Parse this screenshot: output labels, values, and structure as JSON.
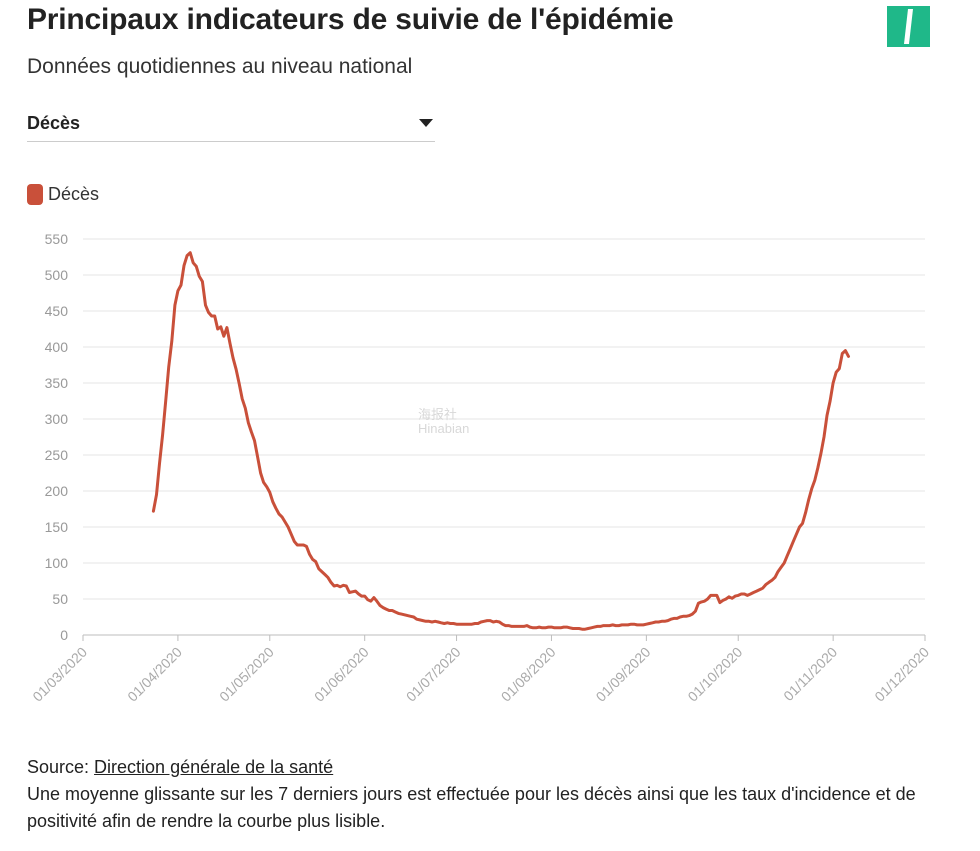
{
  "header": {
    "title": "Principaux indicateurs de suivie de l'épidémie",
    "subtitle": "Données quotidiennes au niveau national"
  },
  "logo": {
    "icon": "slash-logo-icon",
    "color": "#1fb889"
  },
  "selector": {
    "value": "Décès"
  },
  "legend": {
    "label": "Décès",
    "color": "#c9503a"
  },
  "watermark": {
    "line1": "海报社",
    "line2": "Hinabian"
  },
  "footer": {
    "source_prefix": "Source: ",
    "source_link": "Direction générale de la santé",
    "note": "Une moyenne glissante sur les 7 derniers jours est effectuée pour les décès ainsi que les taux d'incidence et de positivité afin de rendre la courbe plus lisible."
  },
  "chart_data": {
    "type": "line",
    "ylim": [
      0,
      550
    ],
    "yticks": [
      0,
      50,
      100,
      150,
      200,
      250,
      300,
      350,
      400,
      450,
      500,
      550
    ],
    "grid": true,
    "legend_position": "top-left",
    "xticks": [
      "01/03/2020",
      "01/04/2020",
      "01/05/2020",
      "01/06/2020",
      "01/07/2020",
      "01/08/2020",
      "01/09/2020",
      "01/10/2020",
      "01/11/2020",
      "01/12/2020"
    ],
    "series": [
      {
        "name": "Décès",
        "color": "#c9503a",
        "points": [
          [
            "2020-03-24",
            172
          ],
          [
            "2020-03-25",
            195
          ],
          [
            "2020-03-26",
            238
          ],
          [
            "2020-03-27",
            278
          ],
          [
            "2020-03-28",
            325
          ],
          [
            "2020-03-29",
            372
          ],
          [
            "2020-03-30",
            408
          ],
          [
            "2020-03-31",
            458
          ],
          [
            "2020-04-01",
            478
          ],
          [
            "2020-04-02",
            486
          ],
          [
            "2020-04-03",
            513
          ],
          [
            "2020-04-04",
            527
          ],
          [
            "2020-04-05",
            531
          ],
          [
            "2020-04-06",
            517
          ],
          [
            "2020-04-07",
            512
          ],
          [
            "2020-04-08",
            498
          ],
          [
            "2020-04-09",
            491
          ],
          [
            "2020-04-10",
            458
          ],
          [
            "2020-04-11",
            448
          ],
          [
            "2020-04-12",
            443
          ],
          [
            "2020-04-13",
            443
          ],
          [
            "2020-04-14",
            425
          ],
          [
            "2020-04-15",
            428
          ],
          [
            "2020-04-16",
            415
          ],
          [
            "2020-04-17",
            427
          ],
          [
            "2020-04-18",
            405
          ],
          [
            "2020-04-19",
            385
          ],
          [
            "2020-04-20",
            369
          ],
          [
            "2020-04-21",
            349
          ],
          [
            "2020-04-22",
            328
          ],
          [
            "2020-04-23",
            315
          ],
          [
            "2020-04-24",
            295
          ],
          [
            "2020-04-25",
            282
          ],
          [
            "2020-04-26",
            270
          ],
          [
            "2020-04-27",
            248
          ],
          [
            "2020-04-28",
            225
          ],
          [
            "2020-04-29",
            212
          ],
          [
            "2020-04-30",
            206
          ],
          [
            "2020-05-01",
            198
          ],
          [
            "2020-05-02",
            185
          ],
          [
            "2020-05-03",
            176
          ],
          [
            "2020-05-04",
            168
          ],
          [
            "2020-05-05",
            164
          ],
          [
            "2020-05-06",
            157
          ],
          [
            "2020-05-07",
            150
          ],
          [
            "2020-05-08",
            140
          ],
          [
            "2020-05-09",
            130
          ],
          [
            "2020-05-10",
            125
          ],
          [
            "2020-05-11",
            125
          ],
          [
            "2020-05-12",
            125
          ],
          [
            "2020-05-13",
            123
          ],
          [
            "2020-05-14",
            112
          ],
          [
            "2020-05-15",
            105
          ],
          [
            "2020-05-16",
            102
          ],
          [
            "2020-05-17",
            92
          ],
          [
            "2020-05-18",
            88
          ],
          [
            "2020-05-19",
            84
          ],
          [
            "2020-05-20",
            80
          ],
          [
            "2020-05-21",
            73
          ],
          [
            "2020-05-22",
            68
          ],
          [
            "2020-05-23",
            69
          ],
          [
            "2020-05-24",
            67
          ],
          [
            "2020-05-25",
            69
          ],
          [
            "2020-05-26",
            68
          ],
          [
            "2020-05-27",
            59
          ],
          [
            "2020-05-28",
            60
          ],
          [
            "2020-05-29",
            61
          ],
          [
            "2020-05-30",
            57
          ],
          [
            "2020-05-31",
            54
          ],
          [
            "2020-06-01",
            54
          ],
          [
            "2020-06-02",
            49
          ],
          [
            "2020-06-03",
            47
          ],
          [
            "2020-06-04",
            52
          ],
          [
            "2020-06-05",
            47
          ],
          [
            "2020-06-06",
            41
          ],
          [
            "2020-06-07",
            38
          ],
          [
            "2020-06-08",
            36
          ],
          [
            "2020-06-09",
            34
          ],
          [
            "2020-06-10",
            34
          ],
          [
            "2020-06-11",
            32
          ],
          [
            "2020-06-12",
            30
          ],
          [
            "2020-06-13",
            29
          ],
          [
            "2020-06-14",
            28
          ],
          [
            "2020-06-15",
            27
          ],
          [
            "2020-06-16",
            26
          ],
          [
            "2020-06-17",
            25
          ],
          [
            "2020-06-18",
            22
          ],
          [
            "2020-06-19",
            21
          ],
          [
            "2020-06-20",
            20
          ],
          [
            "2020-06-21",
            19
          ],
          [
            "2020-06-22",
            19
          ],
          [
            "2020-06-23",
            18
          ],
          [
            "2020-06-24",
            19
          ],
          [
            "2020-06-25",
            18
          ],
          [
            "2020-06-26",
            17
          ],
          [
            "2020-06-27",
            16
          ],
          [
            "2020-06-28",
            17
          ],
          [
            "2020-06-29",
            16
          ],
          [
            "2020-06-30",
            16
          ],
          [
            "2020-07-01",
            15
          ],
          [
            "2020-07-02",
            15
          ],
          [
            "2020-07-03",
            15
          ],
          [
            "2020-07-04",
            15
          ],
          [
            "2020-07-05",
            15
          ],
          [
            "2020-07-06",
            15
          ],
          [
            "2020-07-07",
            16
          ],
          [
            "2020-07-08",
            16
          ],
          [
            "2020-07-09",
            18
          ],
          [
            "2020-07-10",
            19
          ],
          [
            "2020-07-11",
            20
          ],
          [
            "2020-07-12",
            20
          ],
          [
            "2020-07-13",
            18
          ],
          [
            "2020-07-14",
            19
          ],
          [
            "2020-07-15",
            18
          ],
          [
            "2020-07-16",
            15
          ],
          [
            "2020-07-17",
            13
          ],
          [
            "2020-07-18",
            13
          ],
          [
            "2020-07-19",
            12
          ],
          [
            "2020-07-20",
            12
          ],
          [
            "2020-07-21",
            12
          ],
          [
            "2020-07-22",
            12
          ],
          [
            "2020-07-23",
            12
          ],
          [
            "2020-07-24",
            13
          ],
          [
            "2020-07-25",
            11
          ],
          [
            "2020-07-26",
            10
          ],
          [
            "2020-07-27",
            10
          ],
          [
            "2020-07-28",
            11
          ],
          [
            "2020-07-29",
            10
          ],
          [
            "2020-07-30",
            10
          ],
          [
            "2020-07-31",
            11
          ],
          [
            "2020-08-01",
            11
          ],
          [
            "2020-08-02",
            10
          ],
          [
            "2020-08-03",
            10
          ],
          [
            "2020-08-04",
            10
          ],
          [
            "2020-08-05",
            11
          ],
          [
            "2020-08-06",
            11
          ],
          [
            "2020-08-07",
            10
          ],
          [
            "2020-08-08",
            9
          ],
          [
            "2020-08-09",
            9
          ],
          [
            "2020-08-10",
            9
          ],
          [
            "2020-08-11",
            8
          ],
          [
            "2020-08-12",
            8
          ],
          [
            "2020-08-13",
            9
          ],
          [
            "2020-08-14",
            10
          ],
          [
            "2020-08-15",
            11
          ],
          [
            "2020-08-16",
            12
          ],
          [
            "2020-08-17",
            12
          ],
          [
            "2020-08-18",
            13
          ],
          [
            "2020-08-19",
            13
          ],
          [
            "2020-08-20",
            13
          ],
          [
            "2020-08-21",
            14
          ],
          [
            "2020-08-22",
            13
          ],
          [
            "2020-08-23",
            13
          ],
          [
            "2020-08-24",
            14
          ],
          [
            "2020-08-25",
            14
          ],
          [
            "2020-08-26",
            14
          ],
          [
            "2020-08-27",
            15
          ],
          [
            "2020-08-28",
            15
          ],
          [
            "2020-08-29",
            14
          ],
          [
            "2020-08-30",
            14
          ],
          [
            "2020-08-31",
            14
          ],
          [
            "2020-09-01",
            15
          ],
          [
            "2020-09-02",
            16
          ],
          [
            "2020-09-03",
            17
          ],
          [
            "2020-09-04",
            18
          ],
          [
            "2020-09-05",
            18
          ],
          [
            "2020-09-06",
            19
          ],
          [
            "2020-09-07",
            19
          ],
          [
            "2020-09-08",
            20
          ],
          [
            "2020-09-09",
            22
          ],
          [
            "2020-09-10",
            23
          ],
          [
            "2020-09-11",
            23
          ],
          [
            "2020-09-12",
            25
          ],
          [
            "2020-09-13",
            26
          ],
          [
            "2020-09-14",
            26
          ],
          [
            "2020-09-15",
            27
          ],
          [
            "2020-09-16",
            29
          ],
          [
            "2020-09-17",
            33
          ],
          [
            "2020-09-18",
            44
          ],
          [
            "2020-09-19",
            46
          ],
          [
            "2020-09-20",
            47
          ],
          [
            "2020-09-21",
            50
          ],
          [
            "2020-09-22",
            55
          ],
          [
            "2020-09-23",
            55
          ],
          [
            "2020-09-24",
            55
          ],
          [
            "2020-09-25",
            45
          ],
          [
            "2020-09-26",
            48
          ],
          [
            "2020-09-27",
            50
          ],
          [
            "2020-09-28",
            53
          ],
          [
            "2020-09-29",
            51
          ],
          [
            "2020-09-30",
            54
          ],
          [
            "2020-10-01",
            55
          ],
          [
            "2020-10-02",
            57
          ],
          [
            "2020-10-03",
            57
          ],
          [
            "2020-10-04",
            55
          ],
          [
            "2020-10-05",
            57
          ],
          [
            "2020-10-06",
            59
          ],
          [
            "2020-10-07",
            61
          ],
          [
            "2020-10-08",
            63
          ],
          [
            "2020-10-09",
            65
          ],
          [
            "2020-10-10",
            70
          ],
          [
            "2020-10-11",
            73
          ],
          [
            "2020-10-12",
            76
          ],
          [
            "2020-10-13",
            80
          ],
          [
            "2020-10-14",
            88
          ],
          [
            "2020-10-15",
            94
          ],
          [
            "2020-10-16",
            100
          ],
          [
            "2020-10-17",
            110
          ],
          [
            "2020-10-18",
            120
          ],
          [
            "2020-10-19",
            130
          ],
          [
            "2020-10-20",
            140
          ],
          [
            "2020-10-21",
            150
          ],
          [
            "2020-10-22",
            155
          ],
          [
            "2020-10-23",
            170
          ],
          [
            "2020-10-24",
            188
          ],
          [
            "2020-10-25",
            203
          ],
          [
            "2020-10-26",
            215
          ],
          [
            "2020-10-27",
            232
          ],
          [
            "2020-10-28",
            252
          ],
          [
            "2020-10-29",
            275
          ],
          [
            "2020-10-30",
            305
          ],
          [
            "2020-10-31",
            325
          ],
          [
            "2020-11-01",
            350
          ],
          [
            "2020-11-02",
            365
          ],
          [
            "2020-11-03",
            370
          ],
          [
            "2020-11-04",
            391
          ],
          [
            "2020-11-05",
            395
          ],
          [
            "2020-11-06",
            387
          ]
        ]
      }
    ]
  }
}
